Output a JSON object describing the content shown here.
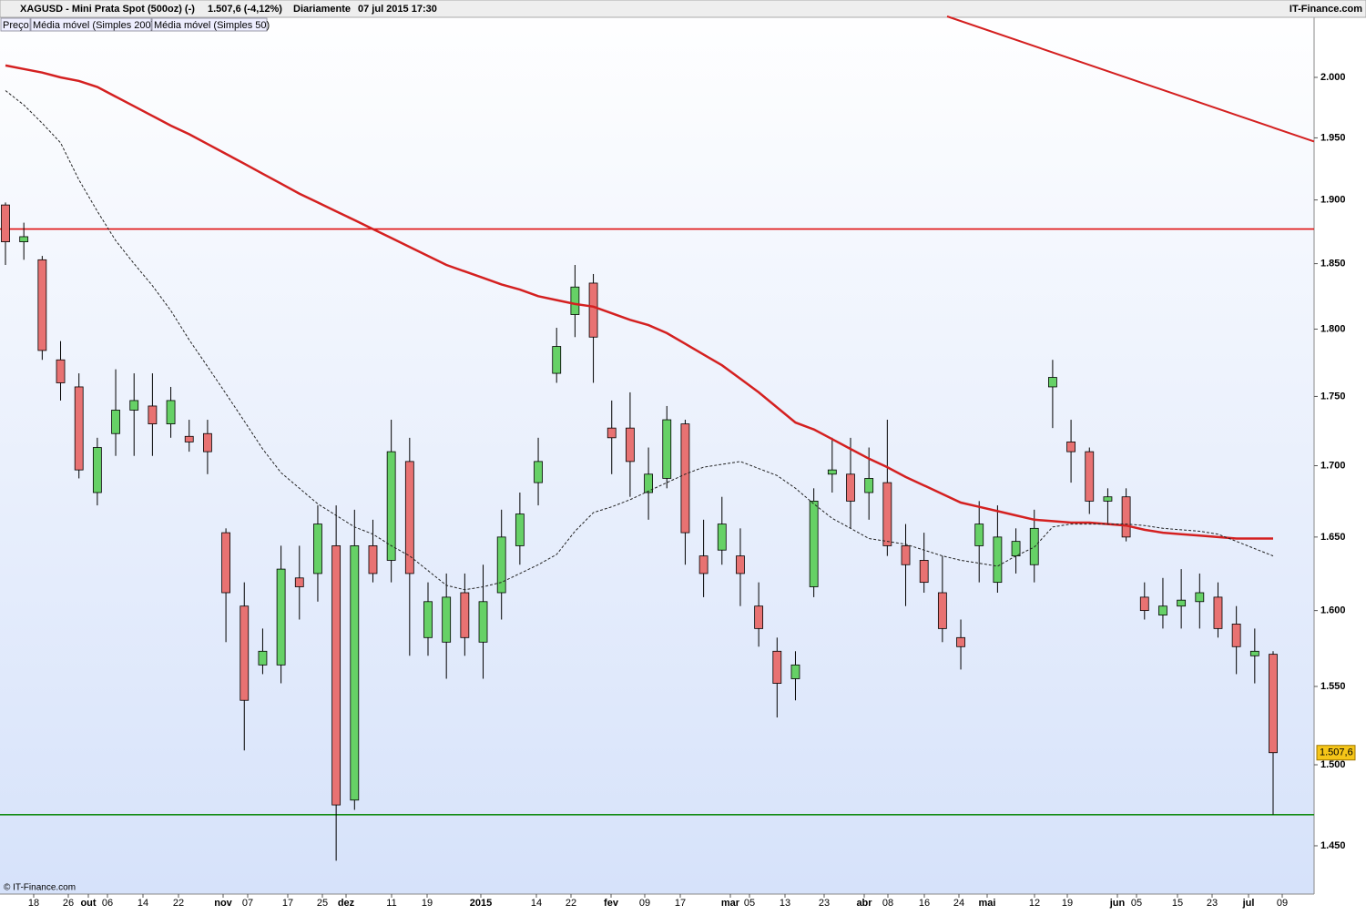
{
  "chart_data": {
    "type": "candlestick",
    "title": "XAGUSD - Mini Prata Spot (500oz) (-)",
    "last_quote": "1.507,6 (-4,12%)",
    "periodicity": "Diariamente",
    "timestamp": "07 jul 2015 17:30",
    "brand": "IT-Finance.com",
    "footer": "© IT-Finance.com",
    "price_name": "Preço",
    "log_scale": true,
    "ylim": [
      1.421,
      2.0517
    ],
    "yticks": [
      {
        "value": 2.0,
        "label": "2.000"
      },
      {
        "value": 1.95,
        "label": "1.950"
      },
      {
        "value": 1.9,
        "label": "1.900"
      },
      {
        "value": 1.85,
        "label": "1.850"
      },
      {
        "value": 1.8,
        "label": "1.800"
      },
      {
        "value": 1.75,
        "label": "1.750"
      },
      {
        "value": 1.7,
        "label": "1.700"
      },
      {
        "value": 1.65,
        "label": "1.650"
      },
      {
        "value": 1.6,
        "label": "1.600"
      },
      {
        "value": 1.55,
        "label": "1.550"
      },
      {
        "value": 1.5,
        "label": "1.500"
      },
      {
        "value": 1.45,
        "label": "1.450"
      }
    ],
    "x_tick_labels": [
      "18",
      "26",
      "out",
      "06",
      "14",
      "22",
      "nov",
      "07",
      "17",
      "25",
      "dez",
      "11",
      "19",
      "2015",
      "14",
      "22",
      "fev",
      "09",
      "17",
      "mar",
      "05",
      "13",
      "23",
      "abr",
      "08",
      "16",
      "24",
      "mai",
      "12",
      "19",
      "jun",
      "05",
      "15",
      "23",
      "jul",
      "09"
    ],
    "up_color": "#66d166",
    "down_color": "#e87272",
    "open": [
      1.896,
      1.867,
      1.853,
      1.777,
      1.757,
      1.681,
      1.723,
      1.74,
      1.743,
      1.73,
      1.721,
      1.723,
      1.653,
      1.603,
      1.564,
      1.564,
      1.622,
      1.625,
      1.644,
      1.478,
      1.644,
      1.634,
      1.703,
      1.582,
      1.579,
      1.612,
      1.579,
      1.612,
      1.644,
      1.688,
      1.767,
      1.811,
      1.835,
      1.727,
      1.727,
      1.681,
      1.691,
      1.73,
      1.637,
      1.641,
      1.637,
      1.603,
      1.573,
      1.555,
      1.616,
      1.694,
      1.694,
      1.681,
      1.688,
      1.644,
      1.634,
      1.612,
      1.582,
      1.644,
      1.619,
      1.637,
      1.631,
      1.757,
      1.717,
      1.71,
      1.675,
      1.678,
      1.609,
      1.597,
      1.603,
      1.606,
      1.609,
      1.591,
      1.57,
      1.571
    ],
    "high": [
      1.898,
      1.882,
      1.856,
      1.791,
      1.767,
      1.72,
      1.77,
      1.767,
      1.767,
      1.757,
      1.733,
      1.733,
      1.656,
      1.619,
      1.588,
      1.644,
      1.644,
      1.672,
      1.672,
      1.669,
      1.662,
      1.733,
      1.72,
      1.619,
      1.625,
      1.625,
      1.631,
      1.669,
      1.681,
      1.72,
      1.801,
      1.849,
      1.842,
      1.747,
      1.753,
      1.713,
      1.743,
      1.733,
      1.662,
      1.678,
      1.656,
      1.619,
      1.582,
      1.573,
      1.684,
      1.72,
      1.72,
      1.713,
      1.733,
      1.659,
      1.653,
      1.637,
      1.594,
      1.675,
      1.672,
      1.656,
      1.669,
      1.777,
      1.733,
      1.713,
      1.684,
      1.684,
      1.619,
      1.622,
      1.628,
      1.625,
      1.619,
      1.603,
      1.588,
      1.573
    ],
    "low": [
      1.849,
      1.853,
      1.777,
      1.747,
      1.691,
      1.672,
      1.707,
      1.707,
      1.707,
      1.72,
      1.71,
      1.694,
      1.579,
      1.509,
      1.558,
      1.552,
      1.594,
      1.606,
      1.441,
      1.472,
      1.619,
      1.619,
      1.57,
      1.57,
      1.555,
      1.57,
      1.555,
      1.594,
      1.631,
      1.672,
      1.76,
      1.794,
      1.76,
      1.694,
      1.678,
      1.662,
      1.684,
      1.631,
      1.609,
      1.631,
      1.603,
      1.576,
      1.53,
      1.541,
      1.609,
      1.681,
      1.656,
      1.662,
      1.637,
      1.603,
      1.612,
      1.579,
      1.561,
      1.619,
      1.612,
      1.625,
      1.619,
      1.727,
      1.688,
      1.666,
      1.659,
      1.647,
      1.594,
      1.588,
      1.588,
      1.588,
      1.582,
      1.558,
      1.552,
      1.469
    ],
    "close": [
      1.867,
      1.871,
      1.784,
      1.76,
      1.697,
      1.713,
      1.74,
      1.747,
      1.73,
      1.747,
      1.717,
      1.71,
      1.612,
      1.541,
      1.573,
      1.628,
      1.616,
      1.659,
      1.475,
      1.644,
      1.625,
      1.71,
      1.625,
      1.606,
      1.609,
      1.582,
      1.606,
      1.65,
      1.666,
      1.703,
      1.787,
      1.832,
      1.794,
      1.72,
      1.703,
      1.694,
      1.733,
      1.653,
      1.625,
      1.659,
      1.625,
      1.588,
      1.552,
      1.564,
      1.675,
      1.697,
      1.675,
      1.691,
      1.644,
      1.631,
      1.619,
      1.588,
      1.576,
      1.659,
      1.65,
      1.647,
      1.656,
      1.764,
      1.71,
      1.675,
      1.678,
      1.65,
      1.6,
      1.603,
      1.607,
      1.612,
      1.588,
      1.576,
      1.573,
      1.5076
    ],
    "series": [
      {
        "name": "Média móvel (Simples 200)",
        "color": "#d42020",
        "values": [
          2.01,
          2.007,
          2.004,
          2.0,
          1.997,
          1.992,
          1.984,
          1.976,
          1.968,
          1.96,
          1.953,
          1.945,
          1.937,
          1.929,
          1.921,
          1.913,
          1.905,
          1.898,
          1.891,
          1.884,
          1.877,
          1.87,
          1.863,
          1.856,
          1.849,
          1.844,
          1.839,
          1.834,
          1.83,
          1.825,
          1.822,
          1.819,
          1.817,
          1.812,
          1.807,
          1.803,
          1.797,
          1.789,
          1.781,
          1.773,
          1.763,
          1.753,
          1.742,
          1.731,
          1.726,
          1.719,
          1.712,
          1.705,
          1.699,
          1.692,
          1.686,
          1.68,
          1.674,
          1.671,
          1.668,
          1.665,
          1.662,
          1.661,
          1.66,
          1.66,
          1.659,
          1.658,
          1.655,
          1.653,
          1.652,
          1.651,
          1.65,
          1.649,
          1.649,
          1.649
        ]
      },
      {
        "name": "Média móvel (Simples 50)",
        "color": "#222222",
        "values": [
          1.989,
          1.977,
          1.962,
          1.946,
          1.916,
          1.891,
          1.868,
          1.85,
          1.833,
          1.814,
          1.792,
          1.772,
          1.752,
          1.732,
          1.712,
          1.695,
          1.684,
          1.673,
          1.665,
          1.657,
          1.652,
          1.644,
          1.637,
          1.627,
          1.617,
          1.614,
          1.616,
          1.619,
          1.625,
          1.631,
          1.638,
          1.654,
          1.667,
          1.671,
          1.676,
          1.682,
          1.688,
          1.694,
          1.699,
          1.701,
          1.703,
          1.698,
          1.693,
          1.684,
          1.673,
          1.663,
          1.656,
          1.649,
          1.647,
          1.645,
          1.641,
          1.637,
          1.634,
          1.632,
          1.63,
          1.637,
          1.643,
          1.657,
          1.659,
          1.659,
          1.659,
          1.659,
          1.658,
          1.656,
          1.655,
          1.654,
          1.652,
          1.647,
          1.642,
          1.637
        ]
      }
    ],
    "trend_line": {
      "color": "#d42020",
      "values": [
        2.0517,
        1.947
      ]
    },
    "hlines": [
      {
        "value": 1.877,
        "color": "#e01010"
      },
      {
        "value": 1.469,
        "color": "#108a10"
      }
    ],
    "last_price": {
      "value": 1.5076,
      "label": "1.507,6"
    }
  }
}
